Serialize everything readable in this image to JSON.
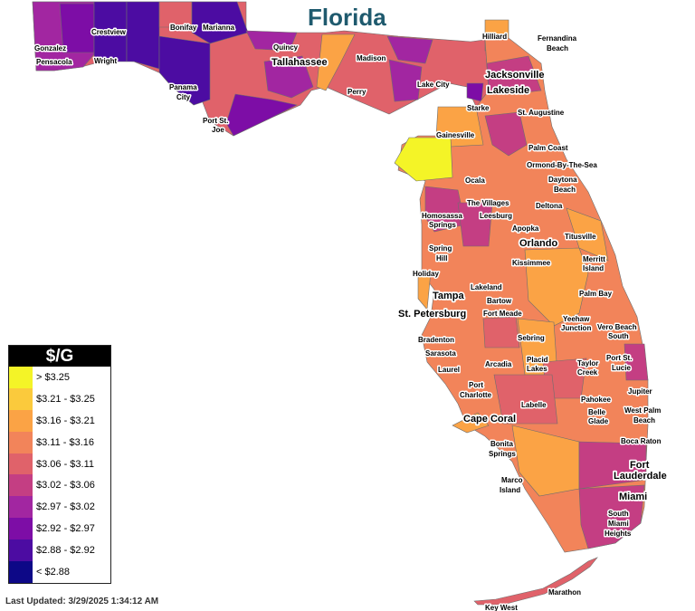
{
  "title": "Florida",
  "legend": {
    "header": "$/G",
    "items": [
      {
        "label": "> $3.25",
        "color": "#f4f427"
      },
      {
        "label": "$3.21 - $3.25",
        "color": "#fbca3c"
      },
      {
        "label": "$3.16 - $3.21",
        "color": "#fba345"
      },
      {
        "label": "$3.11 - $3.16",
        "color": "#f2845a"
      },
      {
        "label": "$3.06 - $3.11",
        "color": "#e0626a"
      },
      {
        "label": "$3.02 - $3.06",
        "color": "#c43e83"
      },
      {
        "label": "$2.97 - $3.02",
        "color": "#a226a1"
      },
      {
        "label": "$2.92 - $2.97",
        "color": "#7d0da6"
      },
      {
        "label": "$2.88 - $2.92",
        "color": "#4c0ca2"
      },
      {
        "label": "< $2.88",
        "color": "#0d0887"
      }
    ]
  },
  "cities": [
    "Crestview",
    "Bonifay",
    "Marianna",
    "Gonzalez",
    "Pensacola",
    "Wright",
    "Quincy",
    "Tallahassee",
    "Madison",
    "Hilliard",
    "Fernandina Beach",
    "Jacksonville",
    "Panama City",
    "Perry",
    "Lake City",
    "Lakeside",
    "Starke",
    "St. Augustine",
    "Port St. Joe",
    "Gainesville",
    "Palm Coast",
    "Ormond-By-The-Sea",
    "Daytona Beach",
    "Ocala",
    "The Villages",
    "Deltona",
    "Homosassa Springs",
    "Leesburg",
    "Apopka",
    "Orlando",
    "Titusville",
    "Spring Hill",
    "Kissimmee",
    "Merritt Island",
    "Holiday",
    "Tampa",
    "Lakeland",
    "Palm Bay",
    "Bartow",
    "St. Petersburg",
    "Fort Meade",
    "Yeehaw Junction",
    "Vero Beach South",
    "Bradenton",
    "Sebring",
    "Sarasota",
    "Arcadia",
    "Placid Lakes",
    "Port St. Lucie",
    "Laurel",
    "Taylor Creek",
    "Port Charlotte",
    "Jupiter",
    "Pahokee",
    "Labelle",
    "Cape Coral",
    "Belle Glade",
    "West Palm Beach",
    "Bonita Springs",
    "Boca Raton",
    "Fort Lauderdale",
    "Marco Island",
    "Miami",
    "South Miami Heights",
    "Marathon",
    "Key West"
  ],
  "last_updated": "Last Updated: 3/29/2025 1:34:12 AM"
}
